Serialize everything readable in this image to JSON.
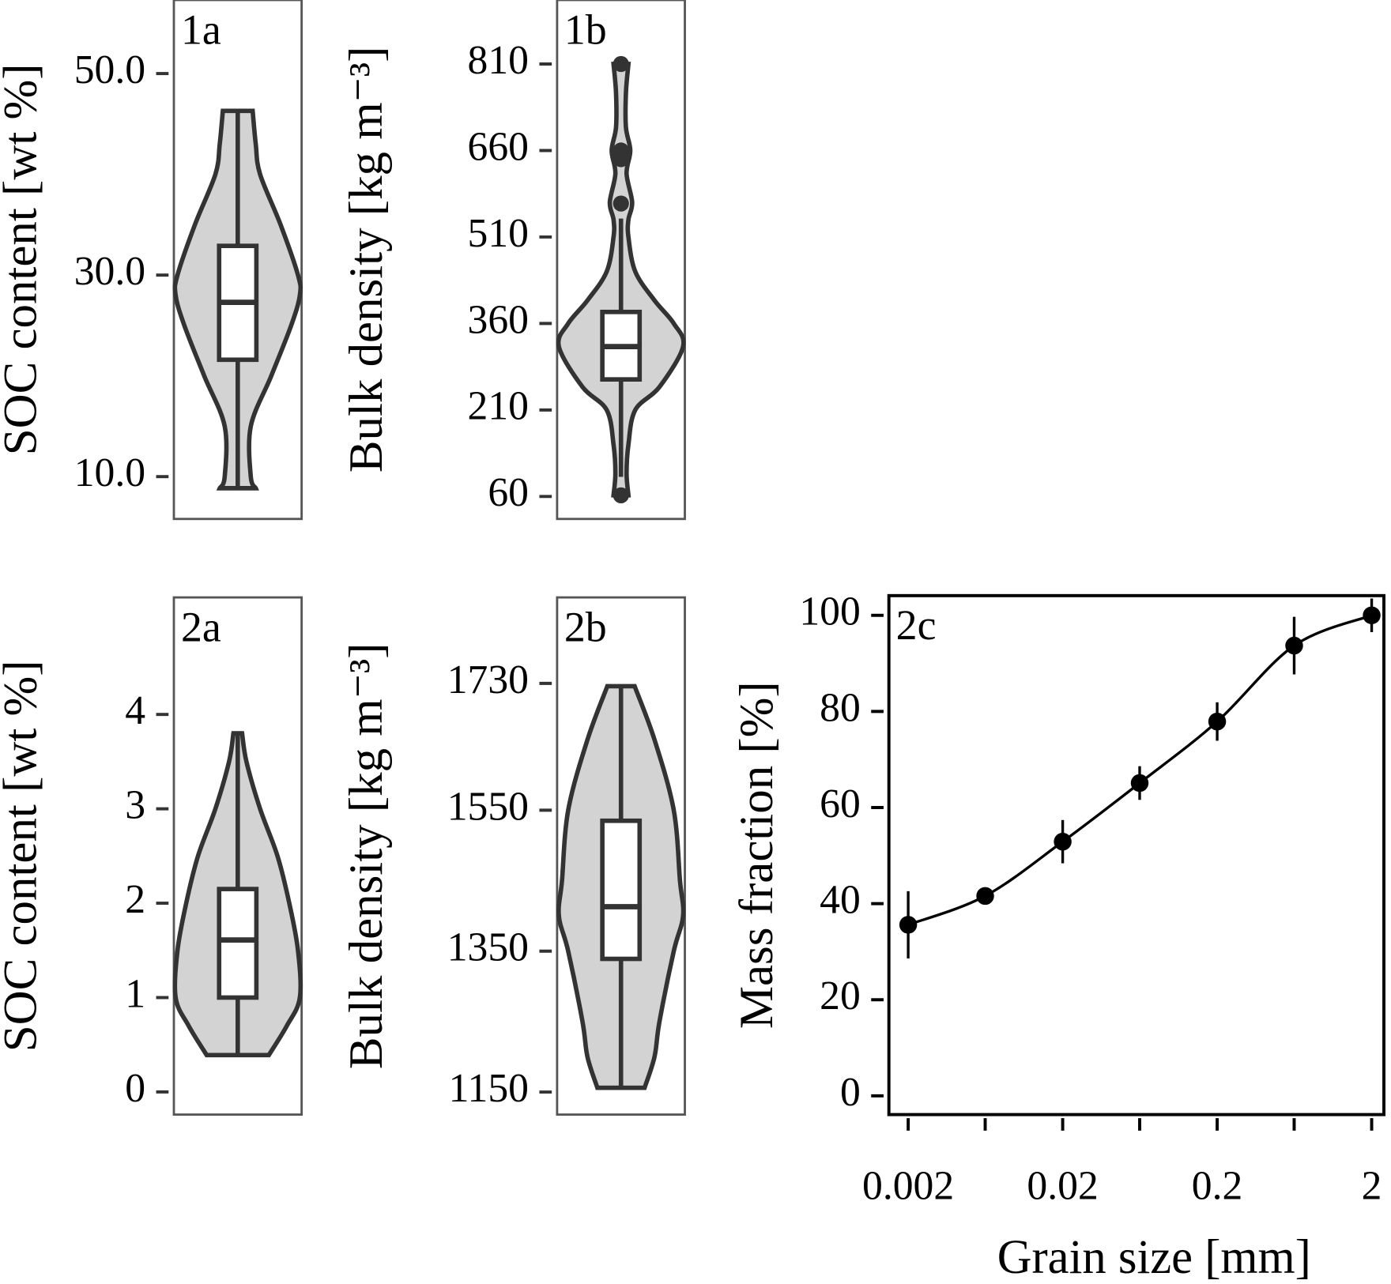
{
  "chart_data": [
    {
      "type": "violin",
      "title": "1a",
      "y_label": "SOC content [wt %]",
      "ylim": [
        5.8,
        57.3
      ],
      "yticks": [
        {
          "value": 10,
          "label": "10.0"
        },
        {
          "value": 30,
          "label": "30.0"
        },
        {
          "value": 50,
          "label": "50.0"
        }
      ],
      "box": {
        "whisker_low": 8.85,
        "q1": 21.6,
        "median": 27.3,
        "q3": 32.9,
        "whisker_high": 46.3
      },
      "outliers": [],
      "density_y": [
        46.3,
        43,
        40,
        35,
        30,
        28,
        25,
        20,
        15,
        10,
        8.85
      ],
      "density": [
        0.24,
        0.29,
        0.36,
        0.69,
        0.97,
        1,
        0.86,
        0.54,
        0.21,
        0.21,
        0.29
      ],
      "color": "#d3d3d3",
      "line_color": "#333333"
    },
    {
      "type": "violin",
      "title": "1b",
      "y_label": "Bulk density [kg m⁻³]",
      "ylim": [
        21,
        921
      ],
      "yticks": [
        60,
        210,
        360,
        510,
        660,
        810
      ],
      "box": {
        "whisker_low": 94,
        "q1": 263,
        "median": 320,
        "q3": 380,
        "whisker_high": 542
      },
      "outliers": [
        810,
        660,
        645,
        568,
        62
      ],
      "density_y": [
        810,
        760,
        700,
        660,
        620,
        570,
        540,
        510,
        450,
        400,
        360,
        320,
        250,
        210,
        150,
        100,
        62
      ],
      "density": [
        0.12,
        0.08,
        0.08,
        0.15,
        0.09,
        0.18,
        0.12,
        0.12,
        0.23,
        0.54,
        0.85,
        1,
        0.62,
        0.23,
        0.12,
        0.09,
        0.12
      ],
      "color": "#d3d3d3",
      "line_color": "#333333"
    },
    {
      "type": "violin",
      "title": "2a",
      "y_label": "SOC content [wt %]",
      "ylim": [
        -0.24,
        5.24
      ],
      "yticks": [
        0,
        1,
        2,
        3,
        4
      ],
      "box": {
        "whisker_low": 0.39,
        "q1": 1.0,
        "median": 1.61,
        "q3": 2.15,
        "whisker_high": 3.8
      },
      "outliers": [],
      "density_y": [
        3.8,
        3.5,
        3.0,
        2.5,
        2.0,
        1.5,
        1.0,
        0.7,
        0.39
      ],
      "density": [
        0.07,
        0.14,
        0.36,
        0.64,
        0.83,
        0.97,
        1,
        0.79,
        0.5
      ],
      "color": "#d3d3d3",
      "line_color": "#333333"
    },
    {
      "type": "violin",
      "title": "2b",
      "y_label": "Bulk density [kg m⁻³]",
      "ylim": [
        1118,
        1852
      ],
      "yticks": [
        1150,
        1350,
        1550,
        1730
      ],
      "box": {
        "whisker_low": 1156,
        "q1": 1339,
        "median": 1413,
        "q3": 1535,
        "whisker_high": 1726
      },
      "outliers": [],
      "density_y": [
        1726,
        1650,
        1550,
        1450,
        1400,
        1350,
        1250,
        1200,
        1156
      ],
      "density": [
        0.22,
        0.54,
        0.85,
        0.95,
        1,
        0.85,
        0.62,
        0.54,
        0.38
      ],
      "color": "#d3d3d3",
      "line_color": "#333333"
    },
    {
      "type": "line",
      "title": "2c",
      "y_label": "Mass fraction [%]",
      "x_label": "Grain size [mm]",
      "log_x": true,
      "x": [
        0.002,
        0.0063,
        0.02,
        0.063,
        0.2,
        0.63,
        2
      ],
      "values": [
        35.6,
        41.6,
        52.9,
        65.1,
        77.9,
        93.7,
        100
      ],
      "errors": [
        7,
        1.5,
        4.5,
        3.5,
        4,
        6,
        3.5
      ],
      "color": "#000000",
      "xlim": [
        0.0015,
        2.4
      ],
      "ylim": [
        -3.9,
        104.1
      ],
      "xticks": [
        0.002,
        {
          "value": 0.0063,
          "label": null
        },
        0.02,
        {
          "value": 0.063,
          "label": null
        },
        0.2,
        {
          "value": 0.63,
          "label": null
        },
        2
      ],
      "yticks": [
        0,
        20,
        40,
        60,
        80,
        100
      ]
    }
  ]
}
